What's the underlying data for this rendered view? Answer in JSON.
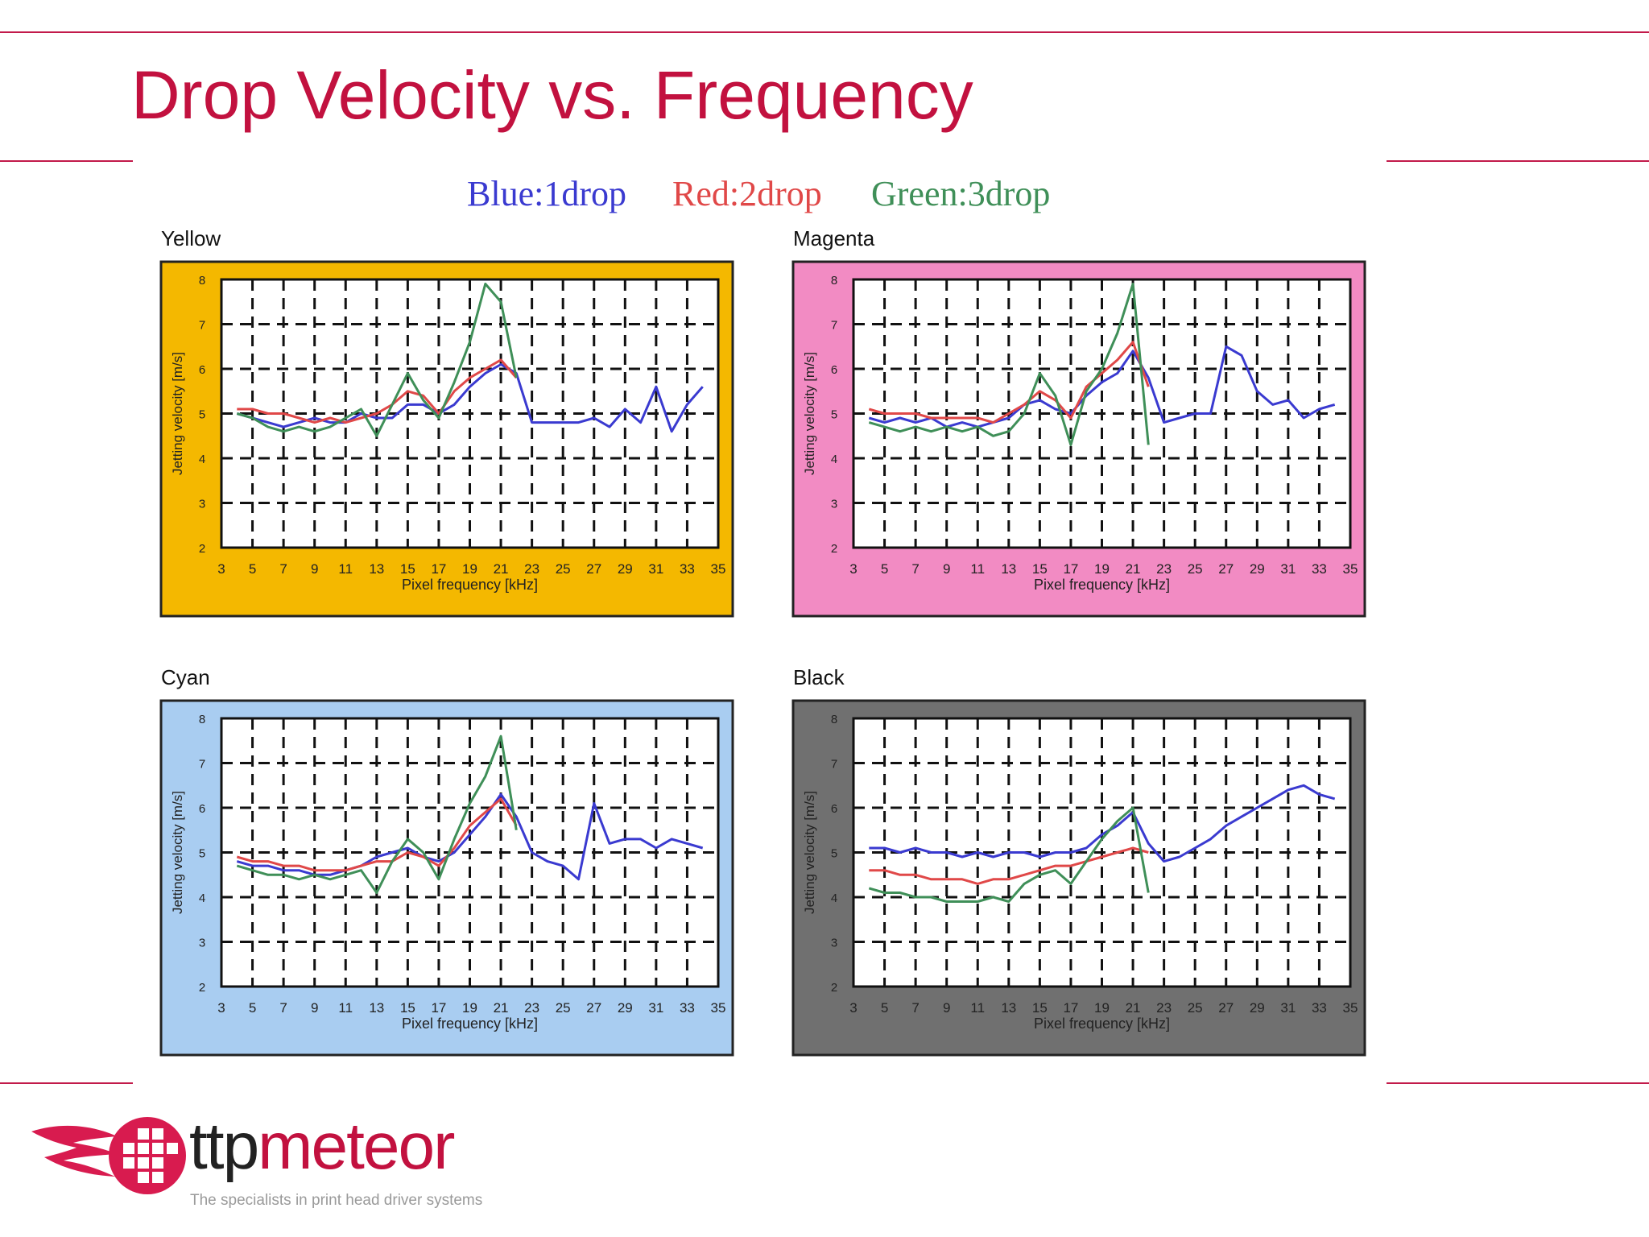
{
  "slide": {
    "title": "Drop Velocity vs. Frequency"
  },
  "colors": {
    "accent": "#c2113f",
    "series_blue": "#3a3ad0",
    "series_red": "#e04848",
    "series_green": "#3f8f58"
  },
  "legend": [
    {
      "text": "Blue:1drop",
      "color": "#3a3ad0"
    },
    {
      "text": "Red:2drop",
      "color": "#e04848"
    },
    {
      "text": "Green:3drop",
      "color": "#3f8f58"
    }
  ],
  "chart_data": [
    {
      "type": "line",
      "title": "Yellow",
      "panel_color": "#f4b800",
      "xlabel": "Pixel frequency [kHz]",
      "ylabel": "Jetting velocity [m/s]",
      "xlim": [
        3,
        35
      ],
      "ylim": [
        2,
        8
      ],
      "xticks": [
        3,
        5,
        7,
        9,
        11,
        13,
        15,
        17,
        19,
        21,
        23,
        25,
        27,
        29,
        31,
        33,
        35
      ],
      "yticks": [
        2,
        3,
        4,
        5,
        6,
        7,
        8
      ],
      "grid": true,
      "series": [
        {
          "name": "Blue:1drop",
          "color": "#3a3ad0",
          "x": [
            4,
            5,
            6,
            7,
            8,
            9,
            10,
            11,
            12,
            13,
            14,
            15,
            16,
            17,
            18,
            19,
            20,
            21,
            22,
            23,
            24,
            25,
            26,
            27,
            28,
            29,
            30,
            31,
            32,
            33,
            34
          ],
          "y": [
            5.0,
            4.9,
            4.8,
            4.7,
            4.8,
            4.9,
            4.8,
            4.8,
            5.0,
            4.9,
            4.9,
            5.2,
            5.2,
            5.0,
            5.2,
            5.6,
            5.9,
            6.1,
            5.9,
            4.8,
            4.8,
            4.8,
            4.8,
            4.9,
            4.7,
            5.1,
            4.8,
            5.6,
            4.6,
            5.2,
            5.6
          ]
        },
        {
          "name": "Red:2drop",
          "color": "#e04848",
          "x": [
            4,
            5,
            6,
            7,
            8,
            9,
            10,
            11,
            12,
            13,
            14,
            15,
            16,
            17,
            18,
            19,
            20,
            21,
            22
          ],
          "y": [
            5.1,
            5.1,
            5.0,
            5.0,
            4.9,
            4.8,
            4.9,
            4.8,
            4.9,
            5.0,
            5.2,
            5.5,
            5.4,
            5.0,
            5.5,
            5.8,
            6.0,
            6.2,
            5.8
          ]
        },
        {
          "name": "Green:3drop",
          "color": "#3f8f58",
          "x": [
            4,
            5,
            6,
            7,
            8,
            9,
            10,
            11,
            12,
            13,
            14,
            15,
            16,
            17,
            18,
            19,
            20,
            21,
            22
          ],
          "y": [
            5.0,
            4.9,
            4.7,
            4.6,
            4.7,
            4.6,
            4.7,
            4.9,
            5.1,
            4.5,
            5.2,
            5.9,
            5.3,
            4.9,
            5.7,
            6.6,
            7.9,
            7.5,
            5.8
          ]
        }
      ]
    },
    {
      "type": "line",
      "title": "Magenta",
      "panel_color": "#f28bc3",
      "xlabel": "Pixel frequency [kHz]",
      "ylabel": "Jetting velocity [m/s]",
      "xlim": [
        3,
        35
      ],
      "ylim": [
        2,
        8
      ],
      "xticks": [
        3,
        5,
        7,
        9,
        11,
        13,
        15,
        17,
        19,
        21,
        23,
        25,
        27,
        29,
        31,
        33,
        35
      ],
      "yticks": [
        2,
        3,
        4,
        5,
        6,
        7,
        8
      ],
      "grid": true,
      "series": [
        {
          "name": "Blue:1drop",
          "color": "#3a3ad0",
          "x": [
            4,
            5,
            6,
            7,
            8,
            9,
            10,
            11,
            12,
            13,
            14,
            15,
            16,
            17,
            18,
            19,
            20,
            21,
            22,
            23,
            24,
            25,
            26,
            27,
            28,
            29,
            30,
            31,
            32,
            33,
            34
          ],
          "y": [
            4.9,
            4.8,
            4.9,
            4.8,
            4.9,
            4.7,
            4.8,
            4.7,
            4.8,
            4.9,
            5.2,
            5.3,
            5.1,
            5.0,
            5.4,
            5.7,
            5.9,
            6.4,
            5.8,
            4.8,
            4.9,
            5.0,
            5.0,
            6.5,
            6.3,
            5.5,
            5.2,
            5.3,
            4.9,
            5.1,
            5.2
          ]
        },
        {
          "name": "Red:2drop",
          "color": "#e04848",
          "x": [
            4,
            5,
            6,
            7,
            8,
            9,
            10,
            11,
            12,
            13,
            14,
            15,
            16,
            17,
            18,
            19,
            20,
            21,
            22
          ],
          "y": [
            5.1,
            5.0,
            5.0,
            5.0,
            4.9,
            4.9,
            4.9,
            4.9,
            4.8,
            5.0,
            5.2,
            5.5,
            5.3,
            4.9,
            5.6,
            5.9,
            6.2,
            6.6,
            5.6
          ]
        },
        {
          "name": "Green:3drop",
          "color": "#3f8f58",
          "x": [
            4,
            5,
            6,
            7,
            8,
            9,
            10,
            11,
            12,
            13,
            14,
            15,
            16,
            17,
            18,
            19,
            20,
            21,
            22
          ],
          "y": [
            4.8,
            4.7,
            4.6,
            4.7,
            4.6,
            4.7,
            4.6,
            4.7,
            4.5,
            4.6,
            5.0,
            5.9,
            5.4,
            4.3,
            5.5,
            6.0,
            6.8,
            7.9,
            4.3
          ]
        }
      ]
    },
    {
      "type": "line",
      "title": "Cyan",
      "panel_color": "#a9cdf1",
      "xlabel": "Pixel frequency [kHz]",
      "ylabel": "Jetting velocity [m/s]",
      "xlim": [
        3,
        35
      ],
      "ylim": [
        2,
        8
      ],
      "xticks": [
        3,
        5,
        7,
        9,
        11,
        13,
        15,
        17,
        19,
        21,
        23,
        25,
        27,
        29,
        31,
        33,
        35
      ],
      "yticks": [
        2,
        3,
        4,
        5,
        6,
        7,
        8
      ],
      "grid": true,
      "series": [
        {
          "name": "Blue:1drop",
          "color": "#3a3ad0",
          "x": [
            4,
            5,
            6,
            7,
            8,
            9,
            10,
            11,
            12,
            13,
            14,
            15,
            16,
            17,
            18,
            19,
            20,
            21,
            22,
            23,
            24,
            25,
            26,
            27,
            28,
            29,
            30,
            31,
            32,
            33,
            34
          ],
          "y": [
            4.8,
            4.7,
            4.7,
            4.6,
            4.6,
            4.5,
            4.5,
            4.6,
            4.7,
            4.9,
            5.0,
            5.1,
            4.9,
            4.8,
            5.0,
            5.4,
            5.8,
            6.3,
            5.8,
            5.0,
            4.8,
            4.7,
            4.4,
            6.1,
            5.2,
            5.3,
            5.3,
            5.1,
            5.3,
            5.2,
            5.1
          ]
        },
        {
          "name": "Red:2drop",
          "color": "#e04848",
          "x": [
            4,
            5,
            6,
            7,
            8,
            9,
            10,
            11,
            12,
            13,
            14,
            15,
            16,
            17,
            18,
            19,
            20,
            21,
            22
          ],
          "y": [
            4.9,
            4.8,
            4.8,
            4.7,
            4.7,
            4.6,
            4.6,
            4.6,
            4.7,
            4.8,
            4.8,
            5.0,
            4.9,
            4.7,
            5.1,
            5.6,
            5.9,
            6.2,
            5.6
          ]
        },
        {
          "name": "Green:3drop",
          "color": "#3f8f58",
          "x": [
            4,
            5,
            6,
            7,
            8,
            9,
            10,
            11,
            12,
            13,
            14,
            15,
            16,
            17,
            18,
            19,
            20,
            21,
            22
          ],
          "y": [
            4.7,
            4.6,
            4.5,
            4.5,
            4.4,
            4.5,
            4.4,
            4.5,
            4.6,
            4.1,
            4.8,
            5.3,
            5.0,
            4.4,
            5.3,
            6.1,
            6.7,
            7.6,
            5.5
          ]
        }
      ]
    },
    {
      "type": "line",
      "title": "Black",
      "panel_color": "#707070",
      "xlabel": "Pixel frequency [kHz]",
      "ylabel": "Jetting velocity [m/s]",
      "xlim": [
        3,
        35
      ],
      "ylim": [
        2,
        8
      ],
      "xticks": [
        3,
        5,
        7,
        9,
        11,
        13,
        15,
        17,
        19,
        21,
        23,
        25,
        27,
        29,
        31,
        33,
        35
      ],
      "yticks": [
        2,
        3,
        4,
        5,
        6,
        7,
        8
      ],
      "grid": true,
      "series": [
        {
          "name": "Blue:1drop",
          "color": "#3a3ad0",
          "x": [
            4,
            5,
            6,
            7,
            8,
            9,
            10,
            11,
            12,
            13,
            14,
            15,
            16,
            17,
            18,
            19,
            20,
            21,
            22,
            23,
            24,
            25,
            26,
            27,
            28,
            29,
            30,
            31,
            32,
            33,
            34
          ],
          "y": [
            5.1,
            5.1,
            5.0,
            5.1,
            5.0,
            5.0,
            4.9,
            5.0,
            4.9,
            5.0,
            5.0,
            4.9,
            5.0,
            5.0,
            5.1,
            5.4,
            5.6,
            5.9,
            5.2,
            4.8,
            4.9,
            5.1,
            5.3,
            5.6,
            5.8,
            6.0,
            6.2,
            6.4,
            6.5,
            6.3,
            6.2
          ]
        },
        {
          "name": "Red:2drop",
          "color": "#e04848",
          "x": [
            4,
            5,
            6,
            7,
            8,
            9,
            10,
            11,
            12,
            13,
            14,
            15,
            16,
            17,
            18,
            19,
            20,
            21,
            22
          ],
          "y": [
            4.6,
            4.6,
            4.5,
            4.5,
            4.4,
            4.4,
            4.4,
            4.3,
            4.4,
            4.4,
            4.5,
            4.6,
            4.7,
            4.7,
            4.8,
            4.9,
            5.0,
            5.1,
            5.0
          ]
        },
        {
          "name": "Green:3drop",
          "color": "#3f8f58",
          "x": [
            4,
            5,
            6,
            7,
            8,
            9,
            10,
            11,
            12,
            13,
            14,
            15,
            16,
            17,
            18,
            19,
            20,
            21,
            22
          ],
          "y": [
            4.2,
            4.1,
            4.1,
            4.0,
            4.0,
            3.9,
            3.9,
            3.9,
            4.0,
            3.9,
            4.3,
            4.5,
            4.6,
            4.3,
            4.8,
            5.3,
            5.7,
            6.0,
            4.1
          ]
        }
      ]
    }
  ],
  "logo": {
    "word_part1": "ttp",
    "word_part2": "meteor",
    "word_part1_color": "#222222",
    "word_part2_color": "#c2113f",
    "tagline": "The specialists in print head driver systems"
  }
}
